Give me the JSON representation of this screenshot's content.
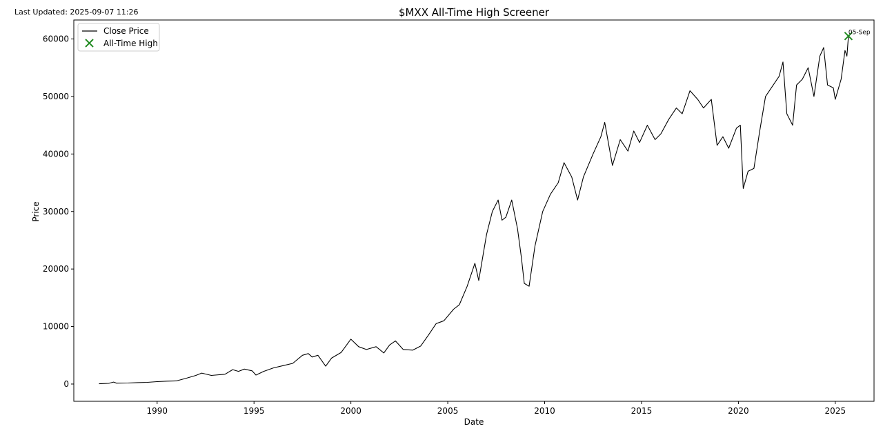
{
  "header": {
    "last_updated": "Last Updated: 2025-09-07 11:26"
  },
  "chart_data": {
    "type": "line",
    "title": "$MXX All-Time High Screener",
    "xlabel": "Date",
    "ylabel": "Price",
    "xlim": [
      1985.7,
      2027.0
    ],
    "ylim": [
      -3000,
      63300
    ],
    "xticks": [
      1990,
      1995,
      2000,
      2005,
      2010,
      2015,
      2020,
      2025
    ],
    "yticks": [
      0,
      10000,
      20000,
      30000,
      40000,
      50000,
      60000
    ],
    "grid": false,
    "legend_position": "top-left",
    "legend": [
      {
        "label": "Close Price",
        "kind": "line",
        "color": "#000000"
      },
      {
        "label": "All-Time High",
        "kind": "marker-x",
        "color": "#228B22"
      }
    ],
    "series": [
      {
        "name": "Close Price",
        "color": "#000000",
        "points": [
          [
            1987.0,
            50
          ],
          [
            1987.5,
            120
          ],
          [
            1987.75,
            350
          ],
          [
            1987.9,
            150
          ],
          [
            1988.5,
            180
          ],
          [
            1989.0,
            250
          ],
          [
            1989.5,
            300
          ],
          [
            1990.0,
            420
          ],
          [
            1990.5,
            500
          ],
          [
            1991.0,
            550
          ],
          [
            1991.5,
            1000
          ],
          [
            1992.0,
            1500
          ],
          [
            1992.3,
            1900
          ],
          [
            1992.8,
            1500
          ],
          [
            1993.0,
            1550
          ],
          [
            1993.5,
            1700
          ],
          [
            1993.9,
            2500
          ],
          [
            1994.2,
            2200
          ],
          [
            1994.5,
            2600
          ],
          [
            1994.9,
            2300
          ],
          [
            1995.1,
            1550
          ],
          [
            1995.5,
            2200
          ],
          [
            1996.0,
            2800
          ],
          [
            1996.5,
            3200
          ],
          [
            1997.0,
            3600
          ],
          [
            1997.5,
            5000
          ],
          [
            1997.8,
            5300
          ],
          [
            1998.0,
            4700
          ],
          [
            1998.3,
            5000
          ],
          [
            1998.7,
            3100
          ],
          [
            1999.0,
            4500
          ],
          [
            1999.5,
            5500
          ],
          [
            2000.0,
            7800
          ],
          [
            2000.4,
            6500
          ],
          [
            2000.8,
            6000
          ],
          [
            2001.3,
            6500
          ],
          [
            2001.7,
            5400
          ],
          [
            2002.0,
            6800
          ],
          [
            2002.3,
            7500
          ],
          [
            2002.7,
            6000
          ],
          [
            2003.2,
            5900
          ],
          [
            2003.6,
            6600
          ],
          [
            2004.0,
            8500
          ],
          [
            2004.4,
            10500
          ],
          [
            2004.8,
            11000
          ],
          [
            2005.3,
            13000
          ],
          [
            2005.6,
            13800
          ],
          [
            2006.0,
            17000
          ],
          [
            2006.4,
            21000
          ],
          [
            2006.6,
            18000
          ],
          [
            2007.0,
            26000
          ],
          [
            2007.3,
            30000
          ],
          [
            2007.6,
            32000
          ],
          [
            2007.8,
            28500
          ],
          [
            2008.0,
            29000
          ],
          [
            2008.3,
            32000
          ],
          [
            2008.6,
            27000
          ],
          [
            2008.8,
            22000
          ],
          [
            2008.95,
            17500
          ],
          [
            2009.2,
            17000
          ],
          [
            2009.5,
            24000
          ],
          [
            2009.9,
            30000
          ],
          [
            2010.3,
            33000
          ],
          [
            2010.7,
            35000
          ],
          [
            2011.0,
            38500
          ],
          [
            2011.4,
            36000
          ],
          [
            2011.7,
            32000
          ],
          [
            2012.0,
            36000
          ],
          [
            2012.5,
            40000
          ],
          [
            2012.9,
            43000
          ],
          [
            2013.1,
            45500
          ],
          [
            2013.5,
            38000
          ],
          [
            2013.9,
            42500
          ],
          [
            2014.3,
            40500
          ],
          [
            2014.6,
            44000
          ],
          [
            2014.9,
            42000
          ],
          [
            2015.3,
            45000
          ],
          [
            2015.7,
            42500
          ],
          [
            2016.0,
            43500
          ],
          [
            2016.4,
            46000
          ],
          [
            2016.8,
            48000
          ],
          [
            2017.1,
            47000
          ],
          [
            2017.5,
            51000
          ],
          [
            2017.9,
            49500
          ],
          [
            2018.2,
            48000
          ],
          [
            2018.6,
            49500
          ],
          [
            2018.9,
            41500
          ],
          [
            2019.2,
            43000
          ],
          [
            2019.5,
            41000
          ],
          [
            2019.9,
            44500
          ],
          [
            2020.1,
            45000
          ],
          [
            2020.25,
            34000
          ],
          [
            2020.5,
            37000
          ],
          [
            2020.8,
            37500
          ],
          [
            2021.1,
            44000
          ],
          [
            2021.4,
            50000
          ],
          [
            2021.8,
            52000
          ],
          [
            2022.1,
            53500
          ],
          [
            2022.3,
            56000
          ],
          [
            2022.5,
            47000
          ],
          [
            2022.8,
            45000
          ],
          [
            2023.0,
            52000
          ],
          [
            2023.3,
            53000
          ],
          [
            2023.6,
            55000
          ],
          [
            2023.9,
            50000
          ],
          [
            2024.2,
            57000
          ],
          [
            2024.4,
            58500
          ],
          [
            2024.6,
            52000
          ],
          [
            2024.9,
            51500
          ],
          [
            2025.0,
            49500
          ],
          [
            2025.3,
            53000
          ],
          [
            2025.5,
            58000
          ],
          [
            2025.6,
            57000
          ],
          [
            2025.68,
            60500
          ]
        ]
      }
    ],
    "markers": [
      {
        "name": "All-Time High",
        "x": 2025.68,
        "y": 60500,
        "label": "05-Sep",
        "color": "#228B22"
      }
    ]
  }
}
